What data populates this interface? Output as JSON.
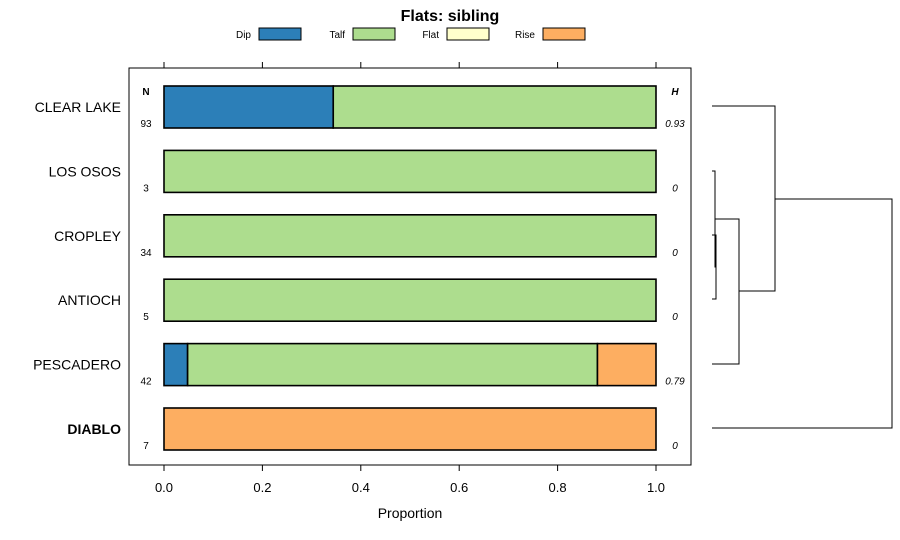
{
  "chart_data": {
    "type": "bar",
    "orientation": "horizontal",
    "stacked": true,
    "title": "Flats: sibling",
    "xlabel": "Proportion",
    "xlim": [
      -0.07,
      1.07
    ],
    "xticks": [
      0.0,
      0.2,
      0.4,
      0.6,
      0.8,
      1.0
    ],
    "xtick_labels": [
      "0.0",
      "0.2",
      "0.4",
      "0.6",
      "0.8",
      "1.0"
    ],
    "legend_position": "top",
    "categories": [
      "CLEAR LAKE",
      "LOS OSOS",
      "CROPLEY",
      "ANTIOCH",
      "PESCADERO",
      "DIABLO"
    ],
    "bold_categories": [
      "DIABLO"
    ],
    "series": [
      {
        "name": "Dip",
        "color": "#2c7fb8",
        "values": [
          0.344,
          0,
          0,
          0,
          0.048,
          0
        ]
      },
      {
        "name": "Talf",
        "color": "#addd8e",
        "values": [
          0.656,
          1,
          1,
          1,
          0.833,
          0
        ]
      },
      {
        "name": "Flat",
        "color": "#ffffcc",
        "values": [
          0,
          0,
          0,
          0,
          0,
          0
        ]
      },
      {
        "name": "Rise",
        "color": "#fdae61",
        "values": [
          0,
          0,
          0,
          0,
          0.119,
          1
        ]
      }
    ],
    "n_header": "N",
    "n_values": [
      "93",
      "3",
      "34",
      "5",
      "42",
      "7"
    ],
    "h_header": "H",
    "h_values": [
      "0.93",
      "0",
      "0",
      "0",
      "0.79",
      "0"
    ]
  }
}
